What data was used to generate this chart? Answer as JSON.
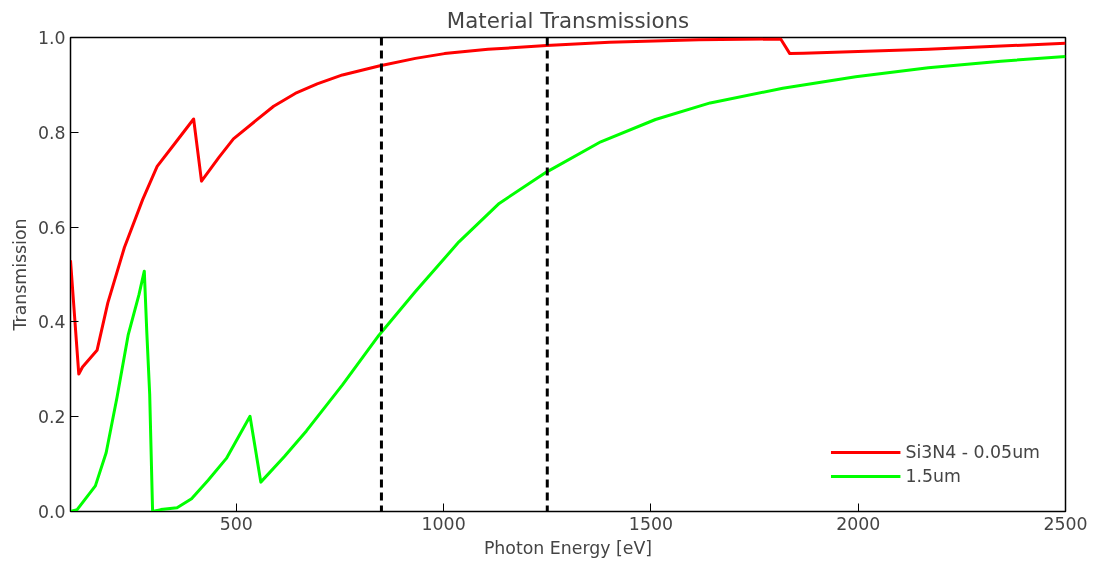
{
  "chart_data": {
    "type": "line",
    "title": "Material Transmissions",
    "xlabel": "Photon Energy [eV]",
    "ylabel": "Transmission",
    "xlim": [
      100,
      2500
    ],
    "ylim": [
      0,
      1
    ],
    "xticks": [
      500,
      1000,
      1500,
      2000,
      2500
    ],
    "yticks": [
      {
        "value": 0,
        "label": "0.0"
      },
      {
        "value": 0.2,
        "label": "0.2"
      },
      {
        "value": 0.4,
        "label": "0.4"
      },
      {
        "value": 0.6,
        "label": "0.6"
      },
      {
        "value": 0.8,
        "label": "0.8"
      },
      {
        "value": 1,
        "label": "1.0"
      }
    ],
    "grid": false,
    "legend": "bottom right",
    "line_style": "solid",
    "series": [
      {
        "name": "Si3N4 - 0.05um",
        "color": "#ff0000",
        "x": [
          100,
          120,
          129,
          164,
          190,
          230,
          274,
          309,
          353,
          397,
          416,
          458,
          493,
          546,
          590,
          642,
          695,
          756,
          844,
          932,
          1002,
          1107,
          1248,
          1400,
          1616,
          1813,
          1835,
          1868,
          2169,
          2500
        ],
        "values": [
          0.53,
          0.29,
          0.305,
          0.34,
          0.44,
          0.557,
          0.658,
          0.728,
          0.778,
          0.828,
          0.697,
          0.747,
          0.786,
          0.824,
          0.855,
          0.882,
          0.902,
          0.921,
          0.94,
          0.956,
          0.966,
          0.975,
          0.983,
          0.99,
          0.995,
          0.997,
          0.966,
          0.967,
          0.975,
          0.988
        ]
      },
      {
        "name": "1.5um",
        "color": "#00ff00",
        "x": [
          100,
          116,
          160,
          186,
          212,
          239,
          265,
          278,
          284,
          291,
          298,
          318,
          357,
          392,
          432,
          476,
          533,
          559,
          616,
          669,
          756,
          844,
          932,
          1037,
          1134,
          1248,
          1379,
          1511,
          1643,
          1818,
          1994,
          2169,
          2344,
          2500
        ],
        "values": [
          0.0,
          0.004,
          0.054,
          0.124,
          0.24,
          0.372,
          0.457,
          0.507,
          0.379,
          0.248,
          0.0,
          0.004,
          0.008,
          0.027,
          0.066,
          0.112,
          0.201,
          0.062,
          0.116,
          0.17,
          0.267,
          0.372,
          0.464,
          0.569,
          0.65,
          0.716,
          0.78,
          0.827,
          0.862,
          0.893,
          0.917,
          0.936,
          0.95,
          0.96
        ]
      }
    ],
    "ref_lines": [
      {
        "axis": "x",
        "value": 850,
        "color": "#000000",
        "line_style": "dashed"
      },
      {
        "axis": "x",
        "value": 1250,
        "color": "#000000",
        "line_style": "dashed"
      }
    ]
  }
}
